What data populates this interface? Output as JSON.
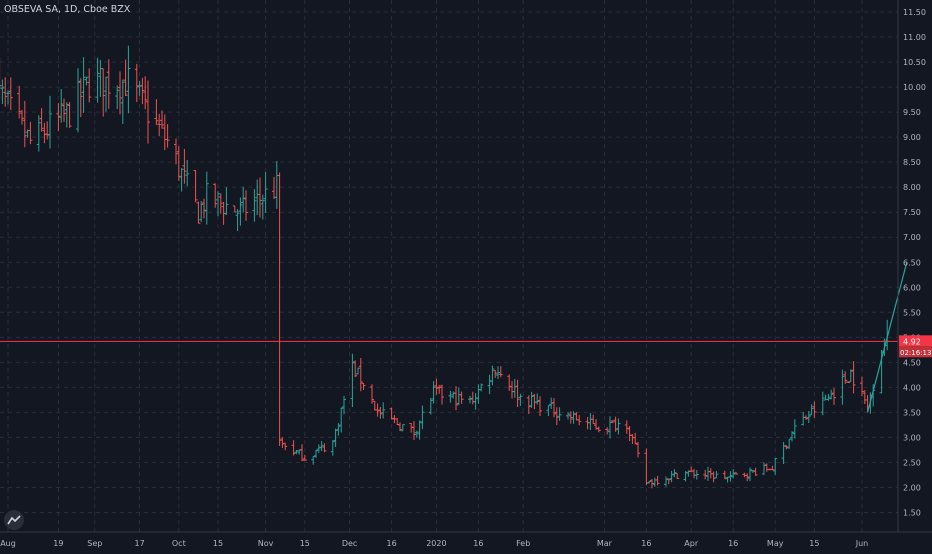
{
  "chart_title": "OBSEVA SA, 1D, Cboe BZX",
  "price_label": "4.92",
  "countdown_label": "02:16:13",
  "colors": {
    "up": "#26a69a",
    "down": "#ef5350",
    "background": "#131722",
    "grid": "#2a2e39",
    "axis_text": "#b2b5be",
    "price_line": "#f23645"
  },
  "chart_data": {
    "type": "ohlc",
    "title": "OBSEVA SA, 1D, Cboe BZX",
    "ylim": [
      1.2,
      11.6
    ],
    "y_ticks": [
      "1.50",
      "2.00",
      "2.50",
      "3.00",
      "3.50",
      "4.00",
      "4.50",
      "5.00",
      "5.50",
      "6.00",
      "6.50",
      "7.00",
      "7.50",
      "8.00",
      "8.50",
      "9.00",
      "9.50",
      "10.00",
      "10.50",
      "11.00",
      "11.50"
    ],
    "x_ticks": [
      "Aug",
      "19",
      "Sep",
      "17",
      "Oct",
      "15",
      "Nov",
      "15",
      "Dec",
      "16",
      "2020",
      "16",
      "Feb",
      "Mar",
      "16",
      "Apr",
      "16",
      "May",
      "15",
      "Jun"
    ],
    "current_price": 4.92,
    "grid": true,
    "anchors": [
      {
        "date": "2019-07-25",
        "close": 10.2
      },
      {
        "date": "2019-08-09",
        "close": 8.9
      },
      {
        "date": "2019-08-23",
        "close": 9.5
      },
      {
        "date": "2019-08-30",
        "close": 10.1
      },
      {
        "date": "2019-09-13",
        "close": 10.1
      },
      {
        "date": "2019-09-27",
        "close": 8.9
      },
      {
        "date": "2019-10-08",
        "close": 7.5
      },
      {
        "date": "2019-10-11",
        "close": 7.8
      },
      {
        "date": "2019-10-23",
        "close": 7.5
      },
      {
        "date": "2019-11-05",
        "close": 8.0
      },
      {
        "date": "2019-11-06",
        "close": 2.9
      },
      {
        "date": "2019-11-15",
        "close": 2.6
      },
      {
        "date": "2019-11-25",
        "close": 2.9
      },
      {
        "date": "2019-12-02",
        "close": 4.4
      },
      {
        "date": "2019-12-06",
        "close": 4.1
      },
      {
        "date": "2019-12-11",
        "close": 3.5
      },
      {
        "date": "2019-12-24",
        "close": 3.1
      },
      {
        "date": "2019-12-31",
        "close": 3.9
      },
      {
        "date": "2020-01-13",
        "close": 3.7
      },
      {
        "date": "2020-01-22",
        "close": 4.4
      },
      {
        "date": "2020-01-31",
        "close": 3.8
      },
      {
        "date": "2020-02-14",
        "close": 3.5
      },
      {
        "date": "2020-02-28",
        "close": 3.2
      },
      {
        "date": "2020-03-09",
        "close": 3.3
      },
      {
        "date": "2020-03-16",
        "close": 2.1
      },
      {
        "date": "2020-03-30",
        "close": 2.3
      },
      {
        "date": "2020-04-14",
        "close": 2.2
      },
      {
        "date": "2020-04-30",
        "close": 2.4
      },
      {
        "date": "2020-05-08",
        "close": 3.2
      },
      {
        "date": "2020-05-20",
        "close": 3.8
      },
      {
        "date": "2020-05-28",
        "close": 4.3
      },
      {
        "date": "2020-06-03",
        "close": 3.6
      },
      {
        "date": "2020-06-08",
        "close": 4.8
      },
      {
        "date": "2020-06-10",
        "close": 4.92
      }
    ],
    "trend_line": {
      "from": {
        "date": "2020-06-03",
        "value": 3.5
      },
      "to": {
        "date": "2020-06-17",
        "value": 6.5
      }
    }
  }
}
